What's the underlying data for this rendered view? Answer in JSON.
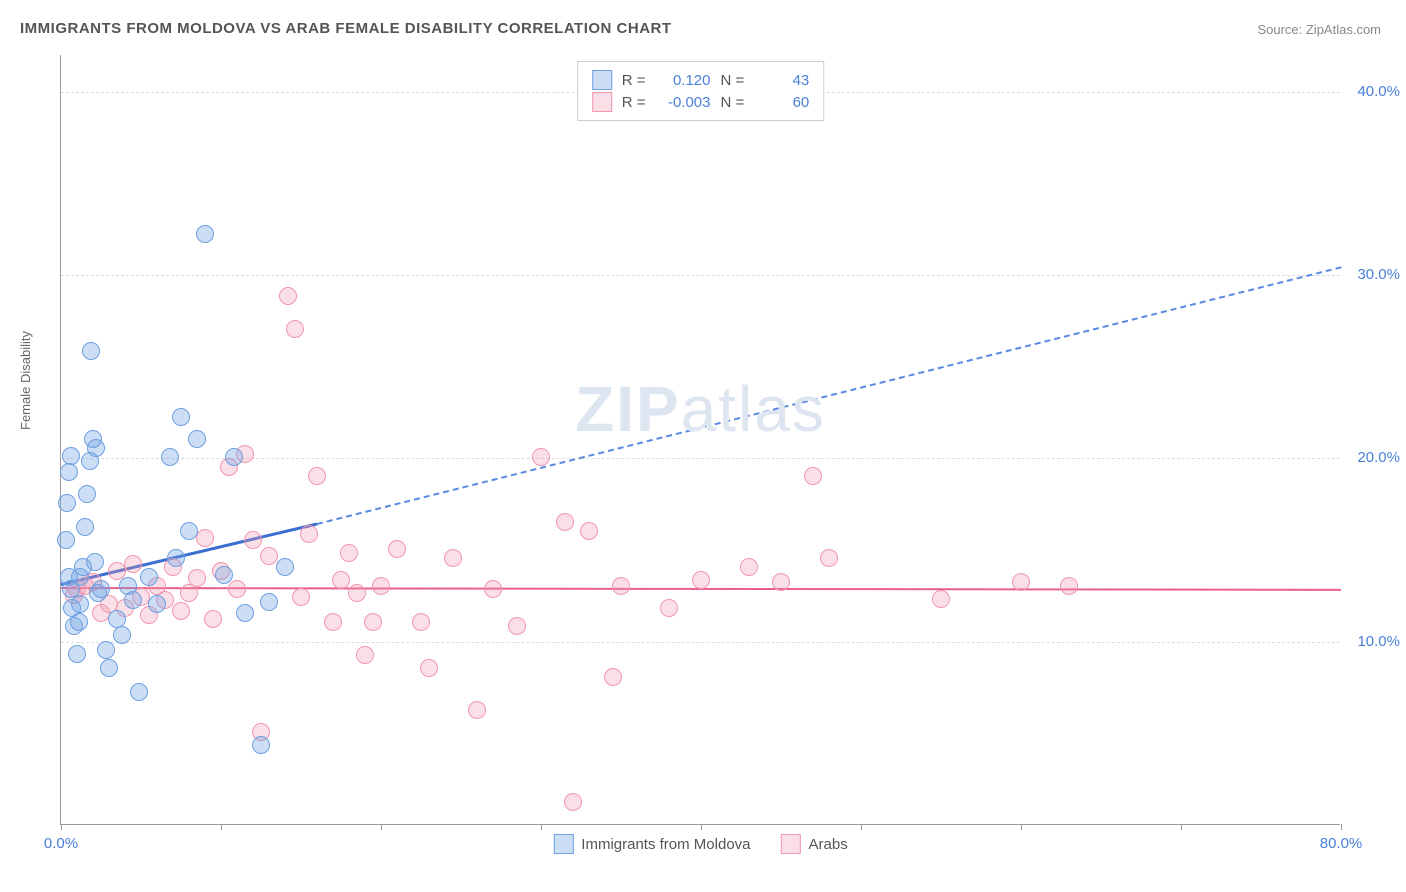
{
  "title": "IMMIGRANTS FROM MOLDOVA VS ARAB FEMALE DISABILITY CORRELATION CHART",
  "source": "Source: ZipAtlas.com",
  "watermark_bold": "ZIP",
  "watermark_rest": "atlas",
  "chart": {
    "type": "scatter",
    "xlabel": "",
    "ylabel": "Female Disability",
    "xlim": [
      0,
      80
    ],
    "ylim": [
      0,
      42
    ],
    "background_color": "#ffffff",
    "grid_color": "#dddddd",
    "axis_color": "#999999",
    "tick_color": "#4a7fd8",
    "x_ticks": [
      0,
      10,
      20,
      30,
      40,
      50,
      60,
      70,
      80
    ],
    "x_tick_labels": {
      "0": "0.0%",
      "80": "80.0%"
    },
    "y_gridlines": [
      10,
      20,
      30,
      40
    ],
    "y_tick_labels": {
      "10": "10.0%",
      "20": "20.0%",
      "30": "30.0%",
      "40": "40.0%"
    },
    "series": {
      "blue": {
        "label": "Immigrants from Moldova",
        "color_fill": "rgba(110,160,225,0.35)",
        "color_stroke": "#6ea0e1",
        "R": "0.120",
        "N": "43",
        "trend": {
          "x1": 0,
          "y1": 13.2,
          "x2_solid": 16,
          "y2_solid": 16.5,
          "x2_dash": 80,
          "y2_dash": 30.5,
          "solid_color": "#3b6fd0",
          "dash_color": "#5a8ae0"
        },
        "points": [
          [
            0.5,
            13.5
          ],
          [
            0.6,
            12.8
          ],
          [
            0.7,
            11.8
          ],
          [
            0.8,
            10.8
          ],
          [
            1.0,
            9.3
          ],
          [
            1.2,
            12.0
          ],
          [
            1.4,
            14.0
          ],
          [
            1.5,
            16.2
          ],
          [
            1.6,
            18.0
          ],
          [
            1.8,
            19.8
          ],
          [
            1.9,
            25.8
          ],
          [
            2.1,
            14.3
          ],
          [
            2.3,
            12.6
          ],
          [
            2.8,
            9.5
          ],
          [
            3.0,
            8.5
          ],
          [
            3.5,
            11.2
          ],
          [
            3.8,
            10.3
          ],
          [
            4.2,
            13.0
          ],
          [
            4.5,
            12.2
          ],
          [
            4.9,
            7.2
          ],
          [
            5.5,
            13.5
          ],
          [
            6.0,
            12.0
          ],
          [
            6.8,
            20.0
          ],
          [
            7.2,
            14.5
          ],
          [
            7.5,
            22.2
          ],
          [
            8.0,
            16.0
          ],
          [
            8.5,
            21.0
          ],
          [
            9.0,
            32.2
          ],
          [
            10.2,
            13.6
          ],
          [
            10.8,
            20.0
          ],
          [
            11.5,
            11.5
          ],
          [
            12.5,
            4.3
          ],
          [
            13.0,
            12.1
          ],
          [
            14.0,
            14.0
          ],
          [
            2.0,
            21.0
          ],
          [
            2.2,
            20.5
          ],
          [
            0.4,
            17.5
          ],
          [
            0.3,
            15.5
          ],
          [
            0.5,
            19.2
          ],
          [
            0.6,
            20.1
          ],
          [
            1.2,
            13.5
          ],
          [
            1.1,
            11.0
          ],
          [
            2.5,
            12.8
          ]
        ]
      },
      "pink": {
        "label": "Arabs",
        "color_fill": "rgba(240,150,175,0.30)",
        "color_stroke": "#f096af",
        "R": "-0.003",
        "N": "60",
        "trend": {
          "x1": 0,
          "y1": 13.0,
          "x2": 80,
          "y2": 12.9,
          "color": "#e85f8a"
        },
        "points": [
          [
            1.0,
            12.8
          ],
          [
            2.0,
            13.2
          ],
          [
            2.5,
            11.5
          ],
          [
            3.0,
            12.0
          ],
          [
            3.5,
            13.8
          ],
          [
            4.0,
            11.8
          ],
          [
            4.5,
            14.2
          ],
          [
            5.0,
            12.4
          ],
          [
            5.5,
            11.4
          ],
          [
            6.0,
            13.0
          ],
          [
            6.5,
            12.2
          ],
          [
            7.0,
            14.0
          ],
          [
            7.5,
            11.6
          ],
          [
            8.0,
            12.6
          ],
          [
            8.5,
            13.4
          ],
          [
            9.0,
            15.6
          ],
          [
            9.5,
            11.2
          ],
          [
            10.0,
            13.8
          ],
          [
            10.5,
            19.5
          ],
          [
            11.0,
            12.8
          ],
          [
            11.5,
            20.2
          ],
          [
            12.0,
            15.5
          ],
          [
            12.5,
            5.0
          ],
          [
            13.0,
            14.6
          ],
          [
            14.2,
            28.8
          ],
          [
            14.6,
            27.0
          ],
          [
            15.0,
            12.4
          ],
          [
            15.5,
            15.8
          ],
          [
            16.0,
            19.0
          ],
          [
            17.0,
            11.0
          ],
          [
            17.5,
            13.3
          ],
          [
            18.0,
            14.8
          ],
          [
            18.5,
            12.6
          ],
          [
            19.0,
            9.2
          ],
          [
            19.5,
            11.0
          ],
          [
            20.0,
            13.0
          ],
          [
            21.0,
            15.0
          ],
          [
            22.5,
            11.0
          ],
          [
            23.0,
            8.5
          ],
          [
            24.5,
            14.5
          ],
          [
            26.0,
            6.2
          ],
          [
            27.0,
            12.8
          ],
          [
            28.5,
            10.8
          ],
          [
            30.0,
            20.0
          ],
          [
            31.5,
            16.5
          ],
          [
            32.0,
            1.2
          ],
          [
            33.0,
            16.0
          ],
          [
            34.5,
            8.0
          ],
          [
            35.0,
            13.0
          ],
          [
            38.0,
            11.8
          ],
          [
            40.0,
            13.3
          ],
          [
            43.0,
            14.0
          ],
          [
            45.0,
            13.2
          ],
          [
            47.0,
            19.0
          ],
          [
            48.0,
            14.5
          ],
          [
            55.0,
            12.3
          ],
          [
            60.0,
            13.2
          ],
          [
            63.0,
            13.0
          ],
          [
            1.5,
            13.0
          ],
          [
            0.8,
            12.5
          ]
        ]
      }
    },
    "legend_top": {
      "rows": [
        {
          "swatch": "blue",
          "r_label": "R =",
          "r_val": "0.120",
          "n_label": "N =",
          "n_val": "43"
        },
        {
          "swatch": "pink",
          "r_label": "R =",
          "r_val": "-0.003",
          "n_label": "N =",
          "n_val": "60"
        }
      ]
    },
    "legend_bottom": [
      {
        "swatch": "blue",
        "label": "Immigrants from Moldova"
      },
      {
        "swatch": "pink",
        "label": "Arabs"
      }
    ]
  }
}
